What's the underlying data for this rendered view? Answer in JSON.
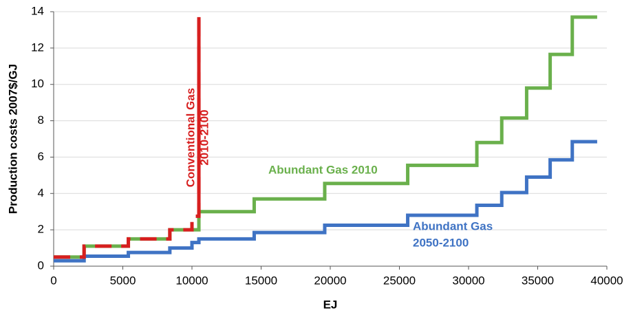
{
  "chart_data": {
    "type": "line",
    "step": "post",
    "ylabel": "Production costs 2007$/GJ",
    "xlabel": "EJ",
    "xlim": [
      0,
      40000
    ],
    "xticks": [
      0,
      5000,
      10000,
      15000,
      20000,
      25000,
      30000,
      35000,
      40000
    ],
    "ylim": [
      0,
      14
    ],
    "yticks": [
      0,
      2,
      4,
      6,
      8,
      10,
      12,
      14
    ],
    "grid": true,
    "series": [
      {
        "color": "#6ab04c",
        "x": [
          0,
          2200,
          5400,
          8400,
          10500,
          14500,
          19600,
          25600,
          30600,
          32400,
          34200,
          35900,
          37500,
          39300
        ],
        "values": [
          0.5,
          1.1,
          1.5,
          2.0,
          3.0,
          3.7,
          4.55,
          5.55,
          6.8,
          8.15,
          9.8,
          11.65,
          13.7,
          13.7
        ]
      },
      {
        "color": "#3f73c4",
        "x": [
          0,
          2200,
          5400,
          8400,
          10000,
          10500,
          14500,
          19600,
          25600,
          30600,
          32400,
          34200,
          35900,
          37500,
          39300
        ],
        "values": [
          0.3,
          0.55,
          0.75,
          1.0,
          1.3,
          1.5,
          1.85,
          2.25,
          2.8,
          3.35,
          4.05,
          4.9,
          5.85,
          6.85,
          6.85
        ]
      },
      {
        "color": "#d71f1f",
        "dashed": true,
        "x": [
          0,
          2200,
          5400,
          8400,
          10000,
          10500
        ],
        "values": [
          0.5,
          1.1,
          1.5,
          2.0,
          2.75,
          13.7
        ]
      }
    ],
    "annotations": [
      {
        "lines": [
          "Abundant Gas 2010"
        ],
        "color": "#6ab04c"
      },
      {
        "lines": [
          "Abundant Gas",
          "2050-2100"
        ],
        "color": "#3f73c4"
      },
      {
        "lines": [
          "Conventional Gas",
          "2010-2100"
        ],
        "color": "#d71f1f"
      }
    ]
  }
}
